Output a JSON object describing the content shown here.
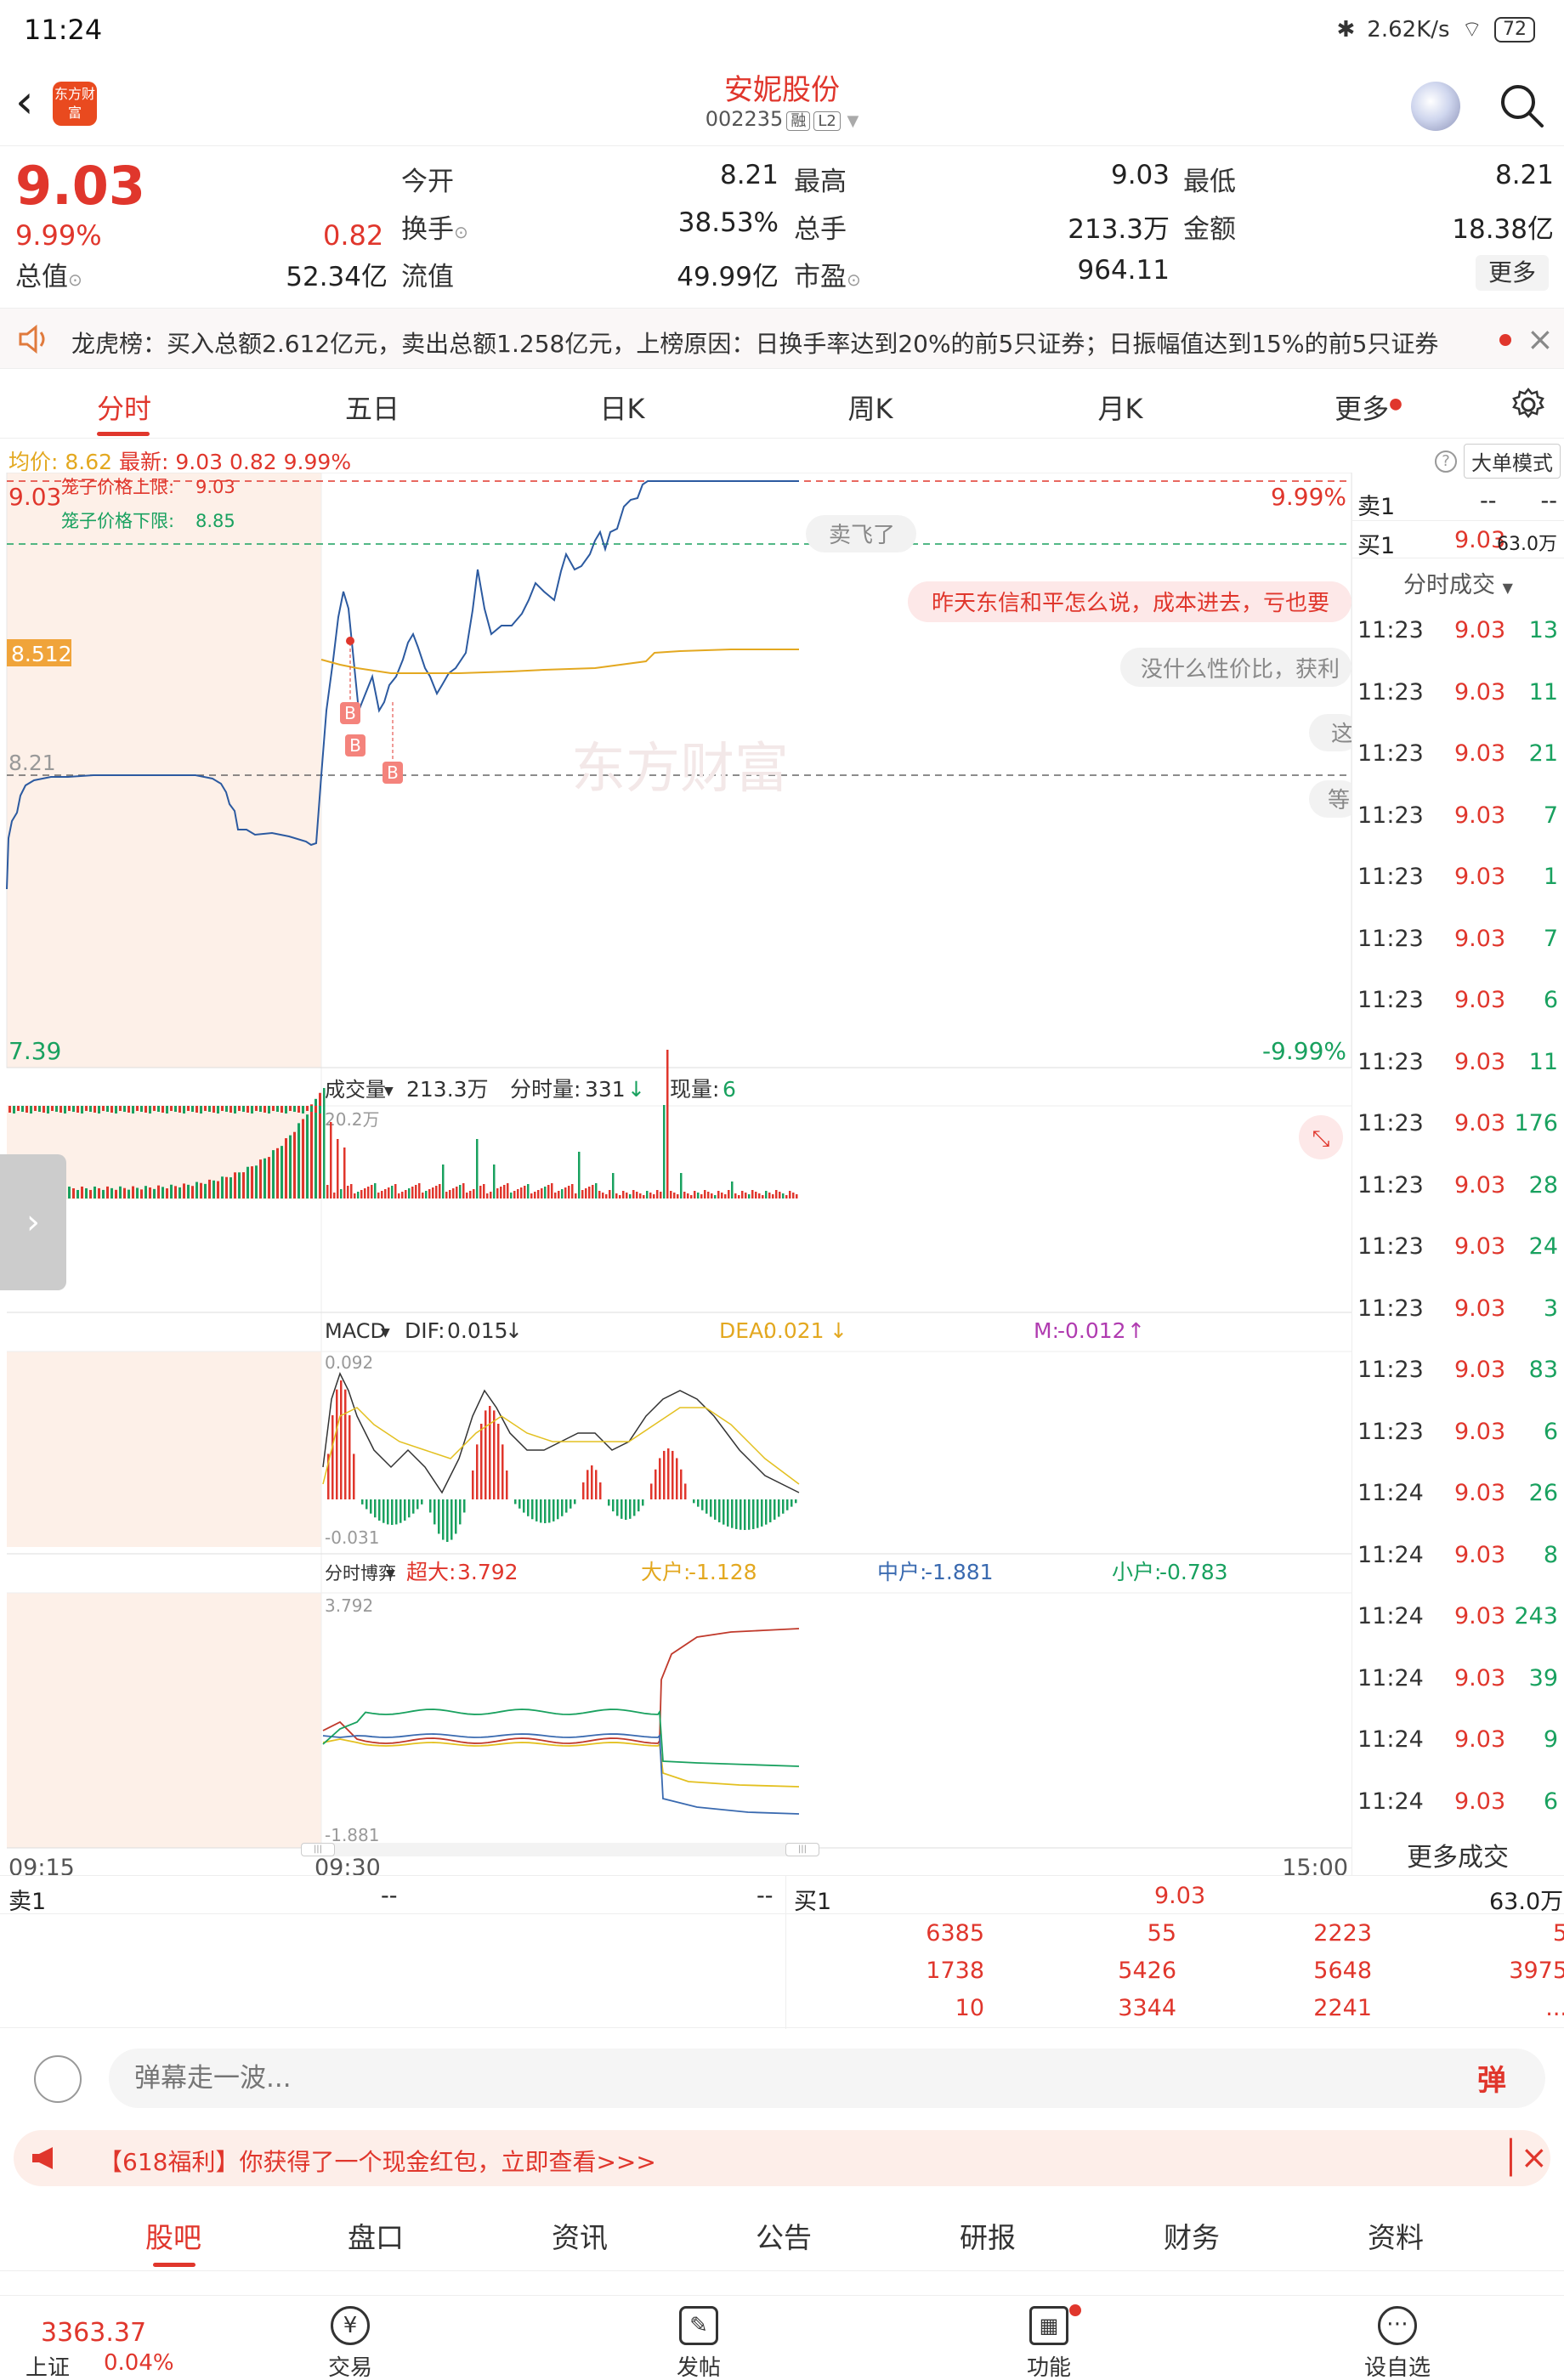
{
  "status": {
    "time": "11:24",
    "net_speed": "2.62K/s",
    "battery": "72"
  },
  "header": {
    "stock_name": "安妮股份",
    "stock_code": "002235",
    "tag_margin": "融",
    "tag_level": "L2",
    "logo_text": "东方财富"
  },
  "quote": {
    "price": "9.03",
    "pct": "9.99%",
    "change": "0.82",
    "fields": [
      {
        "label": "今开",
        "value": "8.21"
      },
      {
        "label": "最高",
        "value": "9.03"
      },
      {
        "label": "最低",
        "value": "8.21"
      },
      {
        "label": "换手",
        "value": "38.53%"
      },
      {
        "label": "总手",
        "value": "213.3万"
      },
      {
        "label": "金额",
        "value": "18.38亿"
      },
      {
        "label": "总值",
        "value": "52.34亿"
      },
      {
        "label": "流值",
        "value": "49.99亿"
      },
      {
        "label": "市盈",
        "value": "964.11"
      }
    ],
    "more_label": "更多"
  },
  "longhu": {
    "text": "龙虎榜：买入总额2.612亿元，卖出总额1.258亿元，上榜原因：日换手率达到20%的前5只证券；日振幅值达到15%的前5只证券"
  },
  "period_tabs": [
    "分时",
    "五日",
    "日K",
    "周K",
    "月K",
    "更多"
  ],
  "chart": {
    "avg_label": "均价:",
    "avg_value": "8.62",
    "last_label": "最新:",
    "last_value": "9.03",
    "last_chg": "0.82",
    "last_pct": "9.99%",
    "bigorder_label": "大单模式",
    "price_top": "9.03",
    "price_mid": "8.512",
    "price_ref": "8.21",
    "price_bottom": "7.39",
    "pct_top": "9.99%",
    "pct_bottom": "-9.99%",
    "cage_up_label": "笼子价格上限:",
    "cage_up": "9.03",
    "cage_down_label": "笼子价格下限:",
    "cage_down": "8.85",
    "watermark": "东方财富",
    "danmu": [
      "卖飞了",
      "昨天东信和平怎么说，成本进去，亏也要",
      "没什么性价比，获利",
      "这",
      "等"
    ],
    "vol_label": "成交量",
    "vol_total": "213.3万",
    "vol_fenshi_label": "分时量:",
    "vol_fenshi": "331",
    "vol_now_label": "现量:",
    "vol_now": "6",
    "vol_max": "20.2万",
    "macd_label": "MACD",
    "dif_label": "DIF:",
    "dif": "0.015",
    "dea_label": "DEA:",
    "dea": "0.021",
    "m_label": "M:",
    "m": "-0.012",
    "macd_top": "0.092",
    "macd_bottom": "-0.031",
    "game_label": "分时博弈",
    "super_label": "超大:",
    "super": "3.792",
    "big_label": "大户:",
    "big": "-1.128",
    "mid_label": "中户:",
    "mid": "-1.881",
    "small_label": "小户:",
    "small": "-0.783",
    "game_top": "3.792",
    "game_bottom": "-1.881",
    "time_start": "09:15",
    "time_open": "09:30",
    "time_end": "15:00"
  },
  "trades": {
    "sell1_label": "卖1",
    "sell1_price": "--",
    "sell1_vol": "--",
    "buy1_label": "买1",
    "buy1_price": "9.03",
    "buy1_vol": "63.0万",
    "title": "分时成交",
    "rows": [
      {
        "t": "11:23",
        "p": "9.03",
        "v": "13"
      },
      {
        "t": "11:23",
        "p": "9.03",
        "v": "11"
      },
      {
        "t": "11:23",
        "p": "9.03",
        "v": "21"
      },
      {
        "t": "11:23",
        "p": "9.03",
        "v": "7"
      },
      {
        "t": "11:23",
        "p": "9.03",
        "v": "1"
      },
      {
        "t": "11:23",
        "p": "9.03",
        "v": "7"
      },
      {
        "t": "11:23",
        "p": "9.03",
        "v": "6"
      },
      {
        "t": "11:23",
        "p": "9.03",
        "v": "11"
      },
      {
        "t": "11:23",
        "p": "9.03",
        "v": "176"
      },
      {
        "t": "11:23",
        "p": "9.03",
        "v": "28"
      },
      {
        "t": "11:23",
        "p": "9.03",
        "v": "24"
      },
      {
        "t": "11:23",
        "p": "9.03",
        "v": "3"
      },
      {
        "t": "11:23",
        "p": "9.03",
        "v": "83"
      },
      {
        "t": "11:23",
        "p": "9.03",
        "v": "6"
      },
      {
        "t": "11:24",
        "p": "9.03",
        "v": "26"
      },
      {
        "t": "11:24",
        "p": "9.03",
        "v": "8"
      },
      {
        "t": "11:24",
        "p": "9.03",
        "v": "243"
      },
      {
        "t": "11:24",
        "p": "9.03",
        "v": "39"
      },
      {
        "t": "11:24",
        "p": "9.03",
        "v": "9"
      },
      {
        "t": "11:24",
        "p": "9.03",
        "v": "6"
      }
    ],
    "more_label": "更多成交"
  },
  "orderbook": {
    "sell1_label": "卖1",
    "sell1_price": "--",
    "sell1_vol": "--",
    "buy1_label": "买1",
    "buy1_price": "9.03",
    "buy1_vol": "63.0万",
    "queue": [
      [
        "6385",
        "55",
        "2223",
        "5"
      ],
      [
        "1738",
        "5426",
        "5648",
        "3975"
      ],
      [
        "10",
        "3344",
        "2241",
        "..."
      ]
    ]
  },
  "comment": {
    "placeholder": "弹幕走一波...",
    "danmu_btn": "弹"
  },
  "promo": {
    "text": "【618福利】你获得了一个现金红包，立即查看>>>"
  },
  "content_tabs": [
    "股吧",
    "盘口",
    "资讯",
    "公告",
    "研报",
    "财务",
    "资料"
  ],
  "bottom_nav": {
    "index_value": "3363.37",
    "index_name": "上证",
    "index_pct": "0.04%",
    "items": [
      {
        "label": "交易",
        "icon": "yen-icon"
      },
      {
        "label": "发帖",
        "icon": "edit-icon"
      },
      {
        "label": "功能",
        "icon": "grid-icon"
      },
      {
        "label": "设自选",
        "icon": "more-icon"
      }
    ]
  },
  "colors": {
    "up": "#e0362c",
    "down": "#19a15f",
    "price_line": "#2c5aa0",
    "avg_line": "#e3a820"
  }
}
